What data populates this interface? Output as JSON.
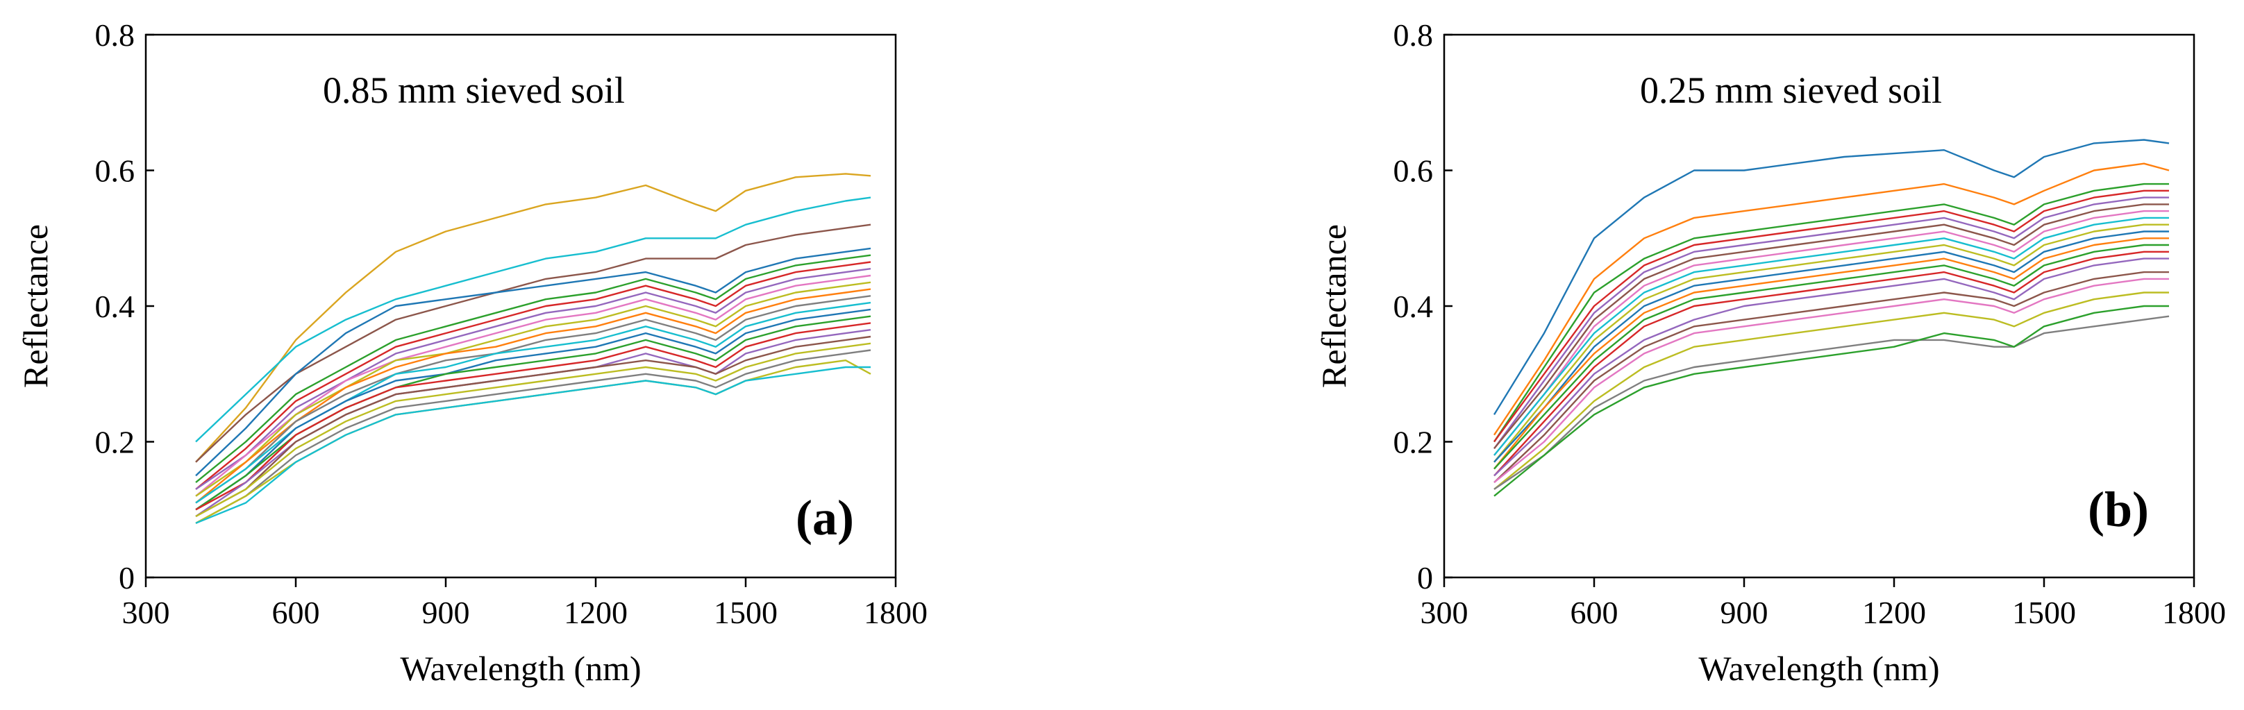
{
  "chart_data": [
    {
      "type": "line",
      "panel_label": "(a)",
      "annotation": "0.85 mm sieved soil",
      "xlabel": "Wavelength (nm)",
      "ylabel": "Reflectance",
      "xlim": [
        300,
        1800
      ],
      "ylim": [
        0,
        0.8
      ],
      "x_ticks": [
        "300",
        "600",
        "900",
        "1200",
        "1500",
        "1800"
      ],
      "y_ticks": [
        "0",
        "0.2",
        "0.4",
        "0.6",
        "0.8"
      ],
      "grid": false,
      "legend": "none",
      "x": [
        400,
        500,
        600,
        700,
        800,
        900,
        1000,
        1100,
        1200,
        1300,
        1400,
        1440,
        1500,
        1600,
        1700,
        1750
      ],
      "series": [
        {
          "color": "#DAA520",
          "values": [
            0.17,
            0.25,
            0.35,
            0.42,
            0.48,
            0.51,
            0.53,
            0.55,
            0.56,
            0.578,
            0.55,
            0.54,
            0.57,
            0.59,
            0.595,
            0.592
          ]
        },
        {
          "color": "#17BECF",
          "values": [
            0.2,
            0.27,
            0.34,
            0.38,
            0.41,
            0.43,
            0.45,
            0.47,
            0.48,
            0.5,
            0.5,
            0.5,
            0.52,
            0.54,
            0.555,
            0.56
          ]
        },
        {
          "color": "#8C564B",
          "values": [
            0.17,
            0.24,
            0.3,
            0.34,
            0.38,
            0.4,
            0.42,
            0.44,
            0.45,
            0.47,
            0.47,
            0.47,
            0.49,
            0.505,
            0.515,
            0.52
          ]
        },
        {
          "color": "#1F77B4",
          "values": [
            0.15,
            0.22,
            0.3,
            0.36,
            0.4,
            0.41,
            0.42,
            0.43,
            0.44,
            0.45,
            0.43,
            0.42,
            0.45,
            0.47,
            0.48,
            0.485
          ]
        },
        {
          "color": "#2CA02C",
          "values": [
            0.14,
            0.2,
            0.27,
            0.31,
            0.35,
            0.37,
            0.39,
            0.41,
            0.42,
            0.44,
            0.42,
            0.41,
            0.44,
            0.46,
            0.47,
            0.475
          ]
        },
        {
          "color": "#D62728",
          "values": [
            0.13,
            0.19,
            0.26,
            0.3,
            0.34,
            0.36,
            0.38,
            0.4,
            0.41,
            0.43,
            0.41,
            0.4,
            0.43,
            0.45,
            0.46,
            0.465
          ]
        },
        {
          "color": "#9467BD",
          "values": [
            0.13,
            0.18,
            0.25,
            0.29,
            0.33,
            0.35,
            0.37,
            0.39,
            0.4,
            0.42,
            0.4,
            0.39,
            0.42,
            0.44,
            0.45,
            0.455
          ]
        },
        {
          "color": "#E377C2",
          "values": [
            0.12,
            0.18,
            0.24,
            0.29,
            0.32,
            0.34,
            0.36,
            0.38,
            0.39,
            0.41,
            0.39,
            0.38,
            0.41,
            0.43,
            0.44,
            0.445
          ]
        },
        {
          "color": "#BCBD22",
          "values": [
            0.12,
            0.17,
            0.24,
            0.28,
            0.32,
            0.33,
            0.35,
            0.37,
            0.38,
            0.4,
            0.38,
            0.37,
            0.4,
            0.42,
            0.43,
            0.435
          ]
        },
        {
          "color": "#FF7F0E",
          "values": [
            0.11,
            0.17,
            0.23,
            0.28,
            0.31,
            0.33,
            0.34,
            0.36,
            0.37,
            0.39,
            0.37,
            0.36,
            0.39,
            0.41,
            0.42,
            0.425
          ]
        },
        {
          "color": "#7F7F7F",
          "values": [
            0.11,
            0.16,
            0.23,
            0.27,
            0.3,
            0.32,
            0.33,
            0.35,
            0.36,
            0.38,
            0.36,
            0.35,
            0.38,
            0.4,
            0.41,
            0.415
          ]
        },
        {
          "color": "#17BECF",
          "values": [
            0.11,
            0.16,
            0.22,
            0.26,
            0.3,
            0.31,
            0.33,
            0.34,
            0.35,
            0.37,
            0.35,
            0.34,
            0.37,
            0.39,
            0.4,
            0.405
          ]
        },
        {
          "color": "#1F77B4",
          "values": [
            0.1,
            0.15,
            0.22,
            0.26,
            0.29,
            0.3,
            0.32,
            0.33,
            0.34,
            0.36,
            0.34,
            0.33,
            0.36,
            0.38,
            0.39,
            0.395
          ]
        },
        {
          "color": "#2CA02C",
          "values": [
            0.1,
            0.15,
            0.21,
            0.25,
            0.28,
            0.3,
            0.31,
            0.32,
            0.33,
            0.35,
            0.33,
            0.32,
            0.35,
            0.37,
            0.38,
            0.385
          ]
        },
        {
          "color": "#D62728",
          "values": [
            0.1,
            0.14,
            0.21,
            0.25,
            0.28,
            0.29,
            0.3,
            0.31,
            0.32,
            0.34,
            0.32,
            0.31,
            0.34,
            0.36,
            0.37,
            0.375
          ]
        },
        {
          "color": "#9467BD",
          "values": [
            0.09,
            0.14,
            0.2,
            0.24,
            0.27,
            0.28,
            0.29,
            0.3,
            0.31,
            0.33,
            0.31,
            0.3,
            0.33,
            0.35,
            0.36,
            0.365
          ]
        },
        {
          "color": "#8C564B",
          "values": [
            0.09,
            0.13,
            0.2,
            0.24,
            0.27,
            0.28,
            0.29,
            0.3,
            0.31,
            0.32,
            0.31,
            0.3,
            0.32,
            0.34,
            0.35,
            0.355
          ]
        },
        {
          "color": "#BCBD22",
          "values": [
            0.09,
            0.13,
            0.19,
            0.23,
            0.26,
            0.27,
            0.28,
            0.29,
            0.3,
            0.31,
            0.3,
            0.29,
            0.31,
            0.33,
            0.34,
            0.345
          ]
        },
        {
          "color": "#7F7F7F",
          "values": [
            0.08,
            0.12,
            0.18,
            0.22,
            0.25,
            0.26,
            0.27,
            0.28,
            0.29,
            0.3,
            0.29,
            0.28,
            0.3,
            0.32,
            0.33,
            0.335
          ]
        },
        {
          "color": "#BCBD22",
          "values": [
            0.08,
            0.12,
            0.17,
            0.21,
            0.24,
            0.25,
            0.26,
            0.27,
            0.28,
            0.29,
            0.28,
            0.27,
            0.29,
            0.31,
            0.32,
            0.3
          ]
        },
        {
          "color": "#17BECF",
          "values": [
            0.08,
            0.11,
            0.17,
            0.21,
            0.24,
            0.25,
            0.26,
            0.27,
            0.28,
            0.29,
            0.28,
            0.27,
            0.29,
            0.3,
            0.31,
            0.31
          ]
        }
      ]
    },
    {
      "type": "line",
      "panel_label": "(b)",
      "annotation": "0.25 mm sieved soil",
      "xlabel": "Wavelength (nm)",
      "ylabel": "Reflectance",
      "xlim": [
        300,
        1800
      ],
      "ylim": [
        0,
        0.8
      ],
      "x_ticks": [
        "300",
        "600",
        "900",
        "1200",
        "1500",
        "1800"
      ],
      "y_ticks": [
        "0",
        "0.2",
        "0.4",
        "0.6",
        "0.8"
      ],
      "grid": false,
      "legend": "none",
      "x": [
        400,
        500,
        600,
        700,
        800,
        900,
        1000,
        1100,
        1200,
        1300,
        1400,
        1440,
        1500,
        1600,
        1700,
        1750
      ],
      "series": [
        {
          "color": "#1F77B4",
          "values": [
            0.24,
            0.36,
            0.5,
            0.56,
            0.6,
            0.6,
            0.61,
            0.62,
            0.625,
            0.63,
            0.6,
            0.59,
            0.62,
            0.64,
            0.645,
            0.64
          ]
        },
        {
          "color": "#FF7F0E",
          "values": [
            0.21,
            0.32,
            0.44,
            0.5,
            0.53,
            0.54,
            0.55,
            0.56,
            0.57,
            0.58,
            0.56,
            0.55,
            0.57,
            0.6,
            0.61,
            0.6
          ]
        },
        {
          "color": "#2CA02C",
          "values": [
            0.2,
            0.31,
            0.42,
            0.47,
            0.5,
            0.51,
            0.52,
            0.53,
            0.54,
            0.55,
            0.53,
            0.52,
            0.55,
            0.57,
            0.58,
            0.58
          ]
        },
        {
          "color": "#D62728",
          "values": [
            0.2,
            0.3,
            0.4,
            0.46,
            0.49,
            0.5,
            0.51,
            0.52,
            0.53,
            0.54,
            0.52,
            0.51,
            0.54,
            0.56,
            0.57,
            0.57
          ]
        },
        {
          "color": "#9467BD",
          "values": [
            0.19,
            0.29,
            0.39,
            0.45,
            0.48,
            0.49,
            0.5,
            0.51,
            0.52,
            0.53,
            0.51,
            0.5,
            0.53,
            0.55,
            0.56,
            0.56
          ]
        },
        {
          "color": "#8C564B",
          "values": [
            0.19,
            0.28,
            0.38,
            0.44,
            0.47,
            0.48,
            0.49,
            0.5,
            0.51,
            0.52,
            0.5,
            0.49,
            0.52,
            0.54,
            0.55,
            0.55
          ]
        },
        {
          "color": "#E377C2",
          "values": [
            0.18,
            0.27,
            0.37,
            0.43,
            0.46,
            0.47,
            0.48,
            0.49,
            0.5,
            0.51,
            0.49,
            0.48,
            0.51,
            0.53,
            0.54,
            0.54
          ]
        },
        {
          "color": "#17BECF",
          "values": [
            0.18,
            0.27,
            0.36,
            0.42,
            0.45,
            0.46,
            0.47,
            0.48,
            0.49,
            0.5,
            0.48,
            0.47,
            0.5,
            0.52,
            0.53,
            0.53
          ]
        },
        {
          "color": "#BCBD22",
          "values": [
            0.17,
            0.26,
            0.35,
            0.41,
            0.44,
            0.45,
            0.46,
            0.47,
            0.48,
            0.49,
            0.47,
            0.46,
            0.49,
            0.51,
            0.52,
            0.52
          ]
        },
        {
          "color": "#1F77B4",
          "values": [
            0.17,
            0.25,
            0.34,
            0.4,
            0.43,
            0.44,
            0.45,
            0.46,
            0.47,
            0.48,
            0.46,
            0.45,
            0.48,
            0.5,
            0.51,
            0.51
          ]
        },
        {
          "color": "#FF7F0E",
          "values": [
            0.16,
            0.25,
            0.33,
            0.39,
            0.42,
            0.43,
            0.44,
            0.45,
            0.46,
            0.47,
            0.45,
            0.44,
            0.47,
            0.49,
            0.5,
            0.5
          ]
        },
        {
          "color": "#2CA02C",
          "values": [
            0.16,
            0.24,
            0.32,
            0.38,
            0.41,
            0.42,
            0.43,
            0.44,
            0.45,
            0.46,
            0.44,
            0.43,
            0.46,
            0.48,
            0.49,
            0.49
          ]
        },
        {
          "color": "#D62728",
          "values": [
            0.15,
            0.23,
            0.31,
            0.37,
            0.4,
            0.41,
            0.42,
            0.43,
            0.44,
            0.45,
            0.43,
            0.42,
            0.45,
            0.47,
            0.48,
            0.48
          ]
        },
        {
          "color": "#9467BD",
          "values": [
            0.15,
            0.22,
            0.3,
            0.35,
            0.38,
            0.4,
            0.41,
            0.42,
            0.43,
            0.44,
            0.42,
            0.41,
            0.44,
            0.46,
            0.47,
            0.47
          ]
        },
        {
          "color": "#8C564B",
          "values": [
            0.14,
            0.21,
            0.29,
            0.34,
            0.37,
            0.38,
            0.39,
            0.4,
            0.41,
            0.42,
            0.41,
            0.4,
            0.42,
            0.44,
            0.45,
            0.45
          ]
        },
        {
          "color": "#E377C2",
          "values": [
            0.14,
            0.2,
            0.28,
            0.33,
            0.36,
            0.37,
            0.38,
            0.39,
            0.4,
            0.41,
            0.4,
            0.39,
            0.41,
            0.43,
            0.44,
            0.44
          ]
        },
        {
          "color": "#BCBD22",
          "values": [
            0.13,
            0.19,
            0.26,
            0.31,
            0.34,
            0.35,
            0.36,
            0.37,
            0.38,
            0.39,
            0.38,
            0.37,
            0.39,
            0.41,
            0.42,
            0.42
          ]
        },
        {
          "color": "#7F7F7F",
          "values": [
            0.13,
            0.18,
            0.25,
            0.29,
            0.31,
            0.32,
            0.33,
            0.34,
            0.35,
            0.35,
            0.34,
            0.34,
            0.36,
            0.37,
            0.38,
            0.385
          ]
        },
        {
          "color": "#2CA02C",
          "values": [
            0.12,
            0.18,
            0.24,
            0.28,
            0.3,
            0.31,
            0.32,
            0.33,
            0.34,
            0.36,
            0.35,
            0.34,
            0.37,
            0.39,
            0.4,
            0.4
          ]
        }
      ]
    }
  ]
}
